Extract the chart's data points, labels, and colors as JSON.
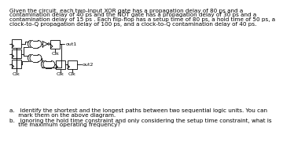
{
  "title_line1": "Given the circuit, each two-input XOR gate has a propagation delay of 80 ps and a",
  "title_line2": "contamination delay of 40 ps and the NOT gate has a propagation delay of 30 ps and a",
  "title_line3": "contamination delay of 15 ps . Each flip-flop has a setup time of 80 ps, a hold time of 50 ps, a",
  "title_line4": "clock-to-Q propagation delay of 100 ps, and a clock-to-Q contamination delay of 40 ps.",
  "question_a": "a.   Identify the shortest and the longest paths between two sequential logic units. You can",
  "question_a2": "     mark them on the above diagram.",
  "question_b": "b.   Ignoring the hold time constraint and only considering the setup time constraint, what is",
  "question_b2": "     the maximum operating frequency?",
  "bg_color": "#ffffff",
  "line_color": "#000000",
  "text_color": "#000000",
  "title_fontsize": 5.2,
  "question_fontsize": 5.2
}
